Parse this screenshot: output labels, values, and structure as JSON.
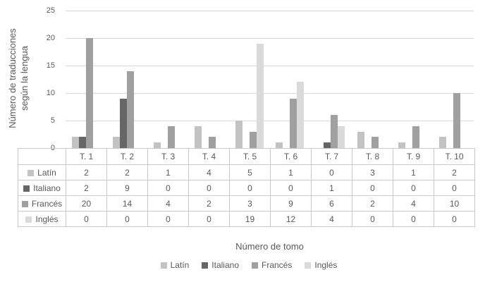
{
  "chart_data": {
    "type": "bar",
    "categories": [
      "T. 1",
      "T. 2",
      "T. 3",
      "T. 4",
      "T. 5",
      "T. 6",
      "T. 7",
      "T. 8",
      "T. 9",
      "T. 10"
    ],
    "series": [
      {
        "name": "Latín",
        "color": "#c3c3c3",
        "values": [
          2,
          2,
          1,
          4,
          5,
          1,
          0,
          3,
          1,
          2
        ]
      },
      {
        "name": "Italiano",
        "color": "#666666",
        "values": [
          2,
          9,
          0,
          0,
          0,
          0,
          1,
          0,
          0,
          0
        ]
      },
      {
        "name": "Francés",
        "color": "#a0a0a0",
        "values": [
          20,
          14,
          4,
          2,
          3,
          9,
          6,
          2,
          4,
          10
        ]
      },
      {
        "name": "Inglés",
        "color": "#dadada",
        "values": [
          0,
          0,
          0,
          0,
          19,
          12,
          4,
          0,
          0,
          0
        ]
      }
    ],
    "title": "",
    "xlabel": "Número de tomo",
    "ylabel": "Número de traducciones según la lengua",
    "ylabel_lines": [
      "Número de traducciones",
      "según la lengua"
    ],
    "ylim": [
      0,
      25
    ],
    "yticks": [
      0,
      5,
      10,
      15,
      20,
      25
    ],
    "grid": true,
    "legend_position": "bottom",
    "data_table_shown": true
  },
  "styles": {
    "text_color": "#595959",
    "gridline_color": "#d9d9d9",
    "table_border_color": "#c9c9c9",
    "background": "#ffffff"
  }
}
